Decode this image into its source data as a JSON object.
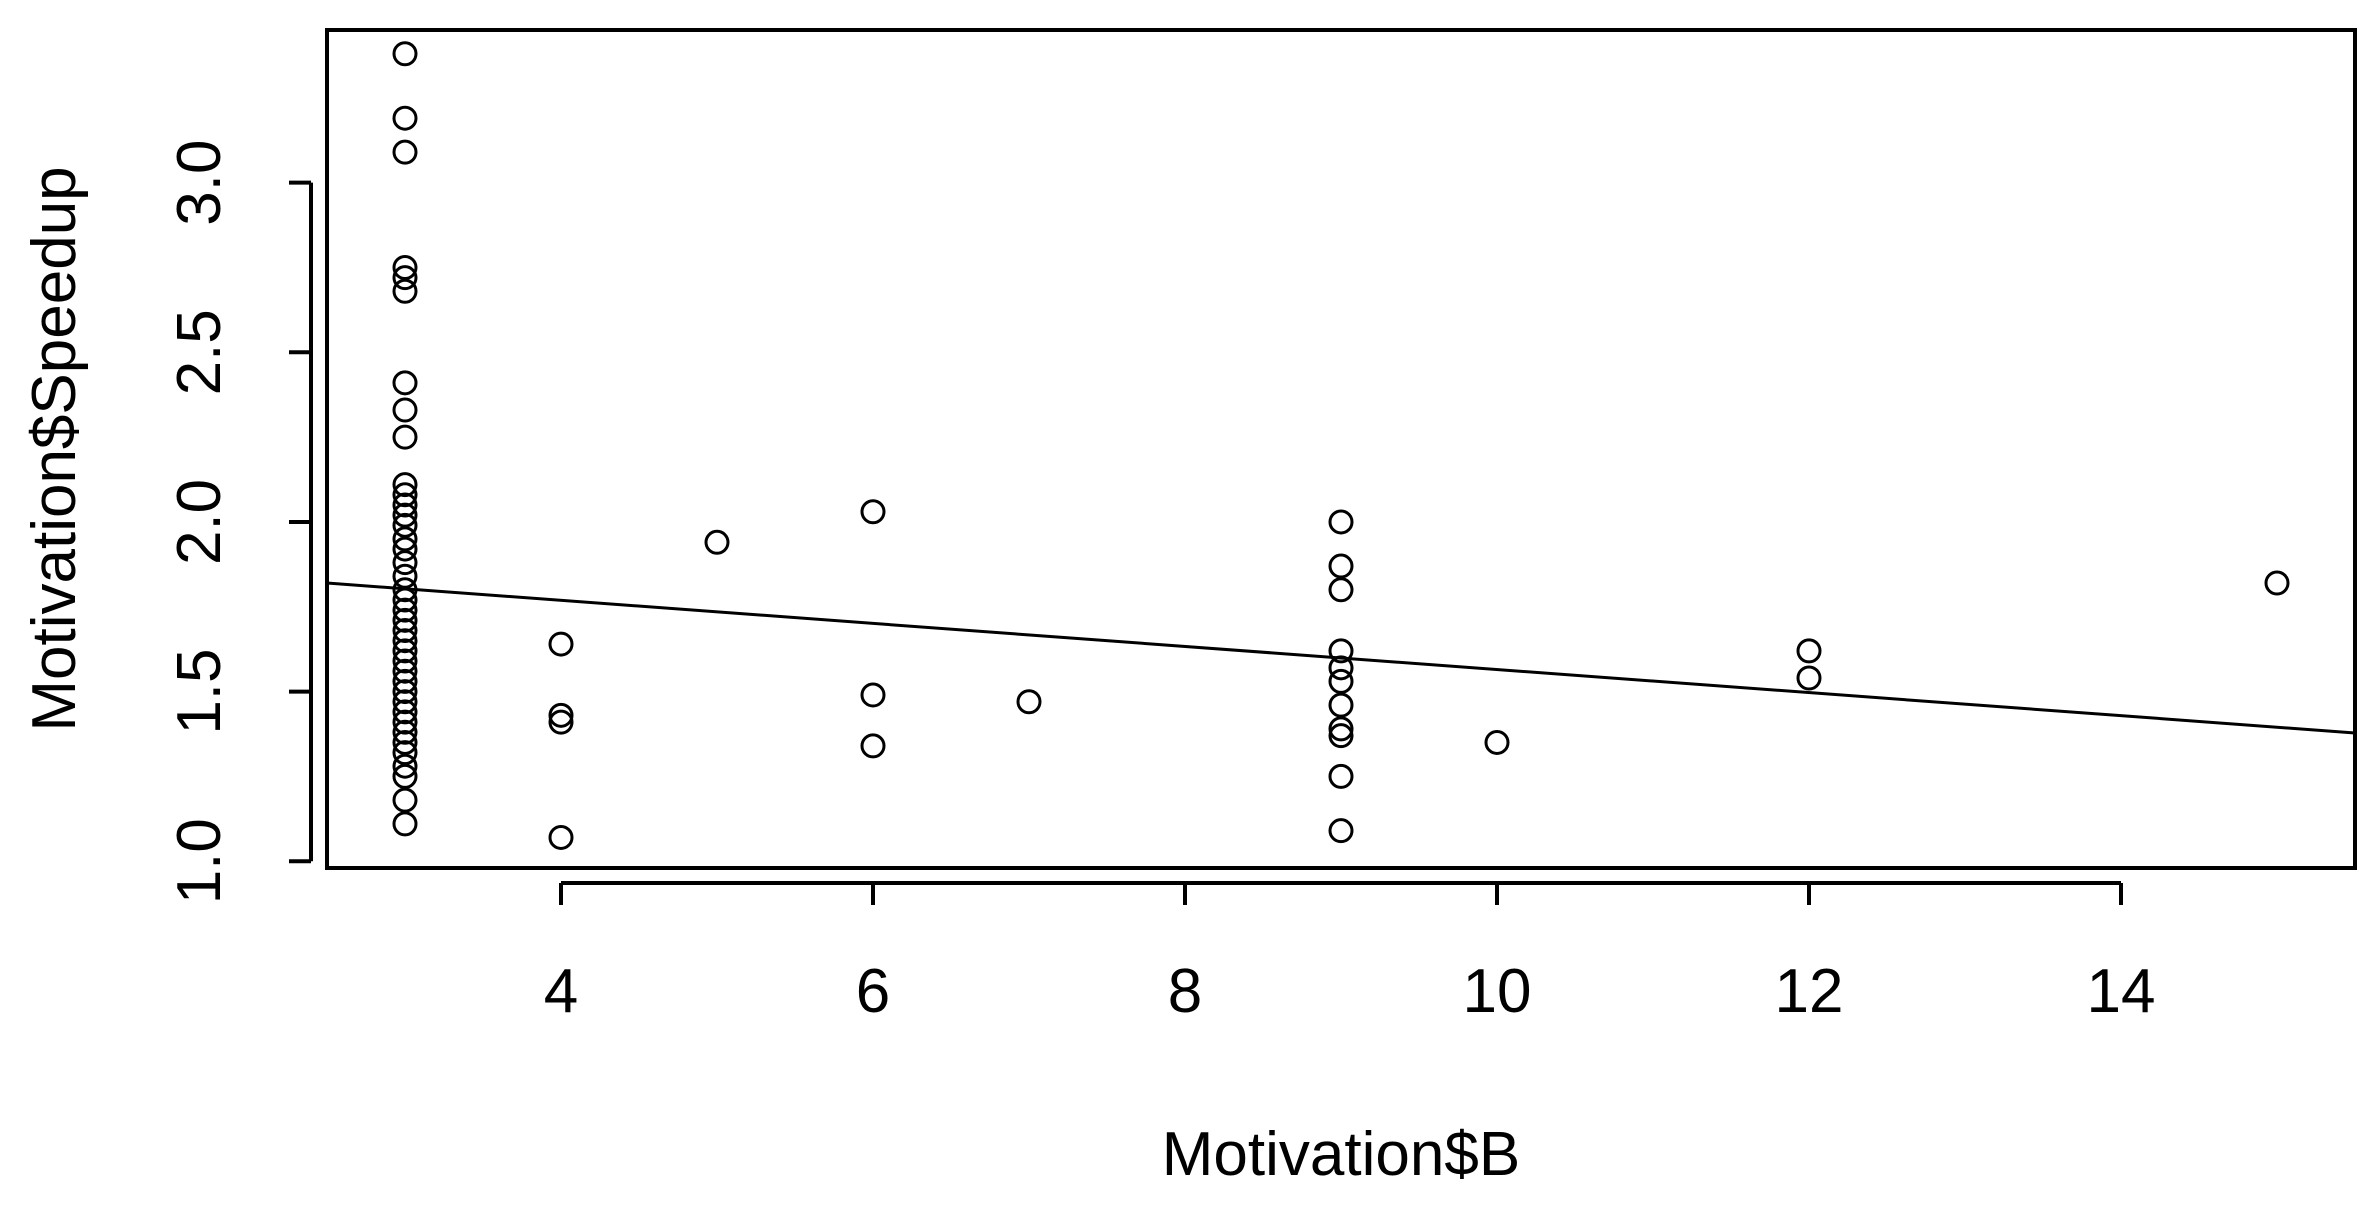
{
  "chart_data": {
    "type": "scatter",
    "xlabel": "Motivation$B",
    "ylabel": "Motivation$Speedup",
    "xlim": [
      2.5,
      15.5
    ],
    "ylim": [
      0.98,
      3.45
    ],
    "x_ticks": [
      4,
      6,
      8,
      10,
      12,
      14
    ],
    "x_tick_labels": [
      "4",
      "6",
      "8",
      "10",
      "12",
      "14"
    ],
    "y_ticks": [
      1.0,
      1.5,
      2.0,
      2.5,
      3.0
    ],
    "y_tick_labels": [
      "1.0",
      "1.5",
      "2.0",
      "2.5",
      "3.0"
    ],
    "regression_line": {
      "intercept": 1.905,
      "slope": -0.034
    },
    "points": [
      {
        "x": 3,
        "y": 3.38
      },
      {
        "x": 3,
        "y": 3.19
      },
      {
        "x": 3,
        "y": 3.09
      },
      {
        "x": 3,
        "y": 2.75
      },
      {
        "x": 3,
        "y": 2.72
      },
      {
        "x": 3,
        "y": 2.68
      },
      {
        "x": 3,
        "y": 2.41
      },
      {
        "x": 3,
        "y": 2.33
      },
      {
        "x": 3,
        "y": 2.25
      },
      {
        "x": 3,
        "y": 2.11
      },
      {
        "x": 3,
        "y": 2.08
      },
      {
        "x": 3,
        "y": 2.05
      },
      {
        "x": 3,
        "y": 2.02
      },
      {
        "x": 3,
        "y": 1.99
      },
      {
        "x": 3,
        "y": 1.95
      },
      {
        "x": 3,
        "y": 1.92
      },
      {
        "x": 3,
        "y": 1.88
      },
      {
        "x": 3,
        "y": 1.84
      },
      {
        "x": 3,
        "y": 1.8
      },
      {
        "x": 3,
        "y": 1.77
      },
      {
        "x": 3,
        "y": 1.74
      },
      {
        "x": 3,
        "y": 1.71
      },
      {
        "x": 3,
        "y": 1.68
      },
      {
        "x": 3,
        "y": 1.65
      },
      {
        "x": 3,
        "y": 1.62
      },
      {
        "x": 3,
        "y": 1.59
      },
      {
        "x": 3,
        "y": 1.56
      },
      {
        "x": 3,
        "y": 1.53
      },
      {
        "x": 3,
        "y": 1.5
      },
      {
        "x": 3,
        "y": 1.47
      },
      {
        "x": 3,
        "y": 1.44
      },
      {
        "x": 3,
        "y": 1.41
      },
      {
        "x": 3,
        "y": 1.38
      },
      {
        "x": 3,
        "y": 1.35
      },
      {
        "x": 3,
        "y": 1.32
      },
      {
        "x": 3,
        "y": 1.28
      },
      {
        "x": 3,
        "y": 1.25
      },
      {
        "x": 3,
        "y": 1.18
      },
      {
        "x": 3,
        "y": 1.11
      },
      {
        "x": 4,
        "y": 1.64
      },
      {
        "x": 4,
        "y": 1.43
      },
      {
        "x": 4,
        "y": 1.41
      },
      {
        "x": 4,
        "y": 1.07
      },
      {
        "x": 5,
        "y": 1.94
      },
      {
        "x": 6,
        "y": 2.03
      },
      {
        "x": 6,
        "y": 1.49
      },
      {
        "x": 6,
        "y": 1.34
      },
      {
        "x": 7,
        "y": 1.47
      },
      {
        "x": 9,
        "y": 2.0
      },
      {
        "x": 9,
        "y": 1.87
      },
      {
        "x": 9,
        "y": 1.8
      },
      {
        "x": 9,
        "y": 1.62
      },
      {
        "x": 9,
        "y": 1.57
      },
      {
        "x": 9,
        "y": 1.53
      },
      {
        "x": 9,
        "y": 1.46
      },
      {
        "x": 9,
        "y": 1.39
      },
      {
        "x": 9,
        "y": 1.37
      },
      {
        "x": 9,
        "y": 1.25
      },
      {
        "x": 9,
        "y": 1.09
      },
      {
        "x": 10,
        "y": 1.35
      },
      {
        "x": 12,
        "y": 1.62
      },
      {
        "x": 12,
        "y": 1.54
      },
      {
        "x": 15,
        "y": 1.82
      }
    ]
  }
}
